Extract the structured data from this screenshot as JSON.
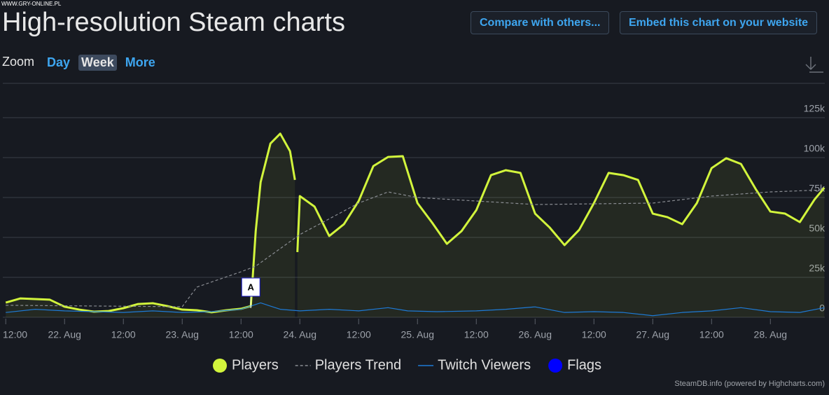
{
  "page": {
    "watermark": "WWW.GRY-ONLINE.PL",
    "heading": "High-resolution Steam charts",
    "buttons": [
      "Compare with others...",
      "Embed this chart on your website"
    ],
    "zoom_label": "Zoom",
    "zoom_options": [
      "Day",
      "Week",
      "More"
    ],
    "zoom_active": "Week",
    "credit": "SteamDB.info (powered by Highcharts.com)"
  },
  "chart_data": {
    "type": "line",
    "xlim": [
      -12.6,
      155.1
    ],
    "xticks": [
      {
        "value": -12,
        "label": "12:00"
      },
      {
        "value": 0,
        "label": "22. Aug"
      },
      {
        "value": 12,
        "label": "12:00"
      },
      {
        "value": 24,
        "label": "23. Aug"
      },
      {
        "value": 36,
        "label": "12:00"
      },
      {
        "value": 48,
        "label": "24. Aug"
      },
      {
        "value": 60,
        "label": "12:00"
      },
      {
        "value": 72,
        "label": "25. Aug"
      },
      {
        "value": 84,
        "label": "12:00"
      },
      {
        "value": 96,
        "label": "26. Aug"
      },
      {
        "value": 108,
        "label": "12:00"
      },
      {
        "value": 120,
        "label": "27. Aug"
      },
      {
        "value": 132,
        "label": "12:00"
      },
      {
        "value": 144,
        "label": "28. Aug"
      }
    ],
    "ylim": [
      0,
      146500
    ],
    "yticks": [
      0,
      {
        "value": 25000,
        "label": "25k"
      },
      {
        "value": 50000,
        "label": "50k"
      },
      {
        "value": 75000,
        "label": "75k"
      },
      {
        "value": 100000,
        "label": "100k"
      },
      {
        "value": 125000,
        "label": "125k"
      }
    ],
    "grid": true,
    "series": [
      {
        "name": "Players",
        "color": "#d2f53c",
        "style": "solid",
        "area": true,
        "x": [
          -12,
          -9,
          -6,
          -3,
          0,
          3,
          6,
          9,
          12,
          15,
          18,
          21,
          24,
          27,
          30,
          33,
          36,
          38,
          39,
          40,
          42,
          44,
          46,
          47,
          47.2,
          47.5,
          48,
          51,
          54,
          57,
          60,
          63,
          66,
          69,
          72,
          75,
          78,
          81,
          84,
          87,
          90,
          93,
          96,
          99,
          102,
          105,
          108,
          111,
          114,
          117,
          120,
          123,
          126,
          129,
          132,
          135,
          138,
          141,
          144,
          147,
          150,
          153,
          155
        ],
        "values": [
          9200,
          11800,
          11400,
          11000,
          6600,
          4800,
          3500,
          3900,
          5700,
          8300,
          8800,
          7000,
          4800,
          4400,
          3100,
          4400,
          5300,
          7000,
          54000,
          84600,
          108800,
          115000,
          104000,
          86000,
          null,
          40800,
          75900,
          69300,
          50900,
          58300,
          72800,
          94700,
          100400,
          100900,
          71500,
          59200,
          46000,
          54000,
          67100,
          89000,
          92100,
          90400,
          64900,
          56100,
          45200,
          54800,
          71500,
          90400,
          89000,
          86000,
          64900,
          62700,
          58300,
          71500,
          93400,
          99600,
          96000,
          80300,
          66200,
          64900,
          59600,
          73700,
          81100
        ]
      },
      {
        "name": "Players Trend",
        "color": "#8a8d93",
        "style": "dashed",
        "x": [
          -12,
          24,
          27,
          36,
          39,
          48,
          60,
          66,
          72,
          96,
          120,
          132,
          144,
          155
        ],
        "values": [
          7500,
          6600,
          18900,
          28500,
          32000,
          51800,
          71500,
          78500,
          75000,
          70600,
          71500,
          75900,
          78500,
          79800
        ]
      },
      {
        "name": "Twitch Viewers",
        "color": "#1e7ad6",
        "style": "solid",
        "x": [
          -12,
          -6,
          0,
          6,
          12,
          18,
          24,
          30,
          36,
          40,
          44,
          48,
          54,
          60,
          66,
          70,
          76,
          84,
          90,
          96,
          102,
          108,
          114,
          120,
          126,
          132,
          138,
          144,
          150,
          155
        ],
        "values": [
          3000,
          5000,
          4000,
          3500,
          3000,
          4000,
          3000,
          3500,
          5000,
          9000,
          5000,
          4000,
          5000,
          4000,
          6000,
          4000,
          3500,
          4000,
          5000,
          6500,
          3000,
          3500,
          3000,
          1000,
          3000,
          4000,
          6000,
          3500,
          3000,
          6000
        ]
      },
      {
        "name": "Flags",
        "color": "#0000ff",
        "style": "flag"
      }
    ],
    "annotations": [
      {
        "x": 38,
        "text": "A"
      }
    ]
  }
}
